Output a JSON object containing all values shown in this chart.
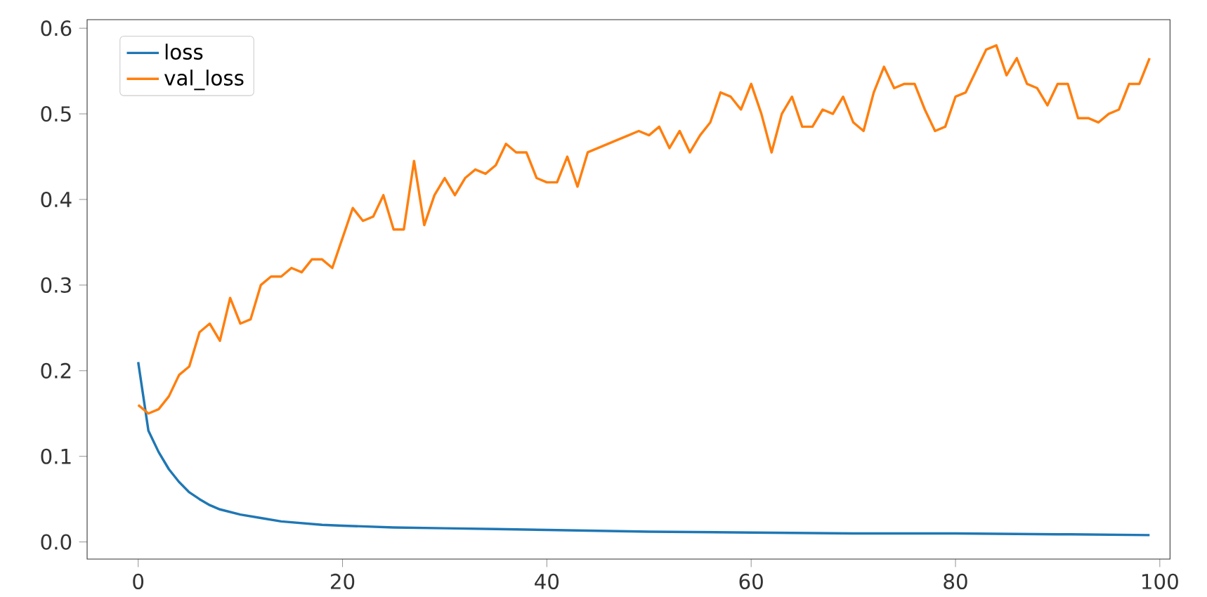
{
  "chart_data": {
    "type": "line",
    "xlim": [
      -5,
      101
    ],
    "ylim": [
      -0.02,
      0.61
    ],
    "xticks": [
      0,
      20,
      40,
      60,
      80,
      100
    ],
    "yticks": [
      {
        "value": 0,
        "label": "0.0"
      },
      {
        "value": 0.1,
        "label": "0.1"
      },
      {
        "value": 0.2,
        "label": "0.2"
      },
      {
        "value": 0.3,
        "label": "0.3"
      },
      {
        "value": 0.4,
        "label": "0.4"
      },
      {
        "value": 0.5,
        "label": "0.5"
      },
      {
        "value": 0.6,
        "label": "0.6"
      }
    ],
    "legend": "top left",
    "grid": false,
    "line_style": "solid",
    "series": [
      {
        "name": "loss",
        "color": "#1f77b4",
        "x": [
          0,
          1,
          2,
          3,
          4,
          5,
          6,
          7,
          8,
          9,
          10,
          12,
          14,
          16,
          18,
          20,
          25,
          30,
          35,
          40,
          50,
          60,
          70,
          80,
          90,
          99
        ],
        "values": [
          0.21,
          0.13,
          0.105,
          0.085,
          0.07,
          0.058,
          0.05,
          0.043,
          0.038,
          0.035,
          0.032,
          0.028,
          0.024,
          0.022,
          0.02,
          0.019,
          0.017,
          0.016,
          0.015,
          0.014,
          0.012,
          0.011,
          0.01,
          0.01,
          0.009,
          0.008
        ]
      },
      {
        "name": "val_loss",
        "color": "#ff7f0e",
        "x": [
          0,
          1,
          2,
          3,
          4,
          5,
          6,
          7,
          8,
          9,
          10,
          11,
          12,
          13,
          14,
          15,
          16,
          17,
          18,
          19,
          20,
          21,
          22,
          23,
          24,
          25,
          26,
          27,
          28,
          29,
          30,
          31,
          32,
          33,
          34,
          35,
          36,
          37,
          38,
          39,
          40,
          41,
          42,
          43,
          44,
          45,
          46,
          47,
          48,
          49,
          50,
          51,
          52,
          53,
          54,
          55,
          56,
          57,
          58,
          59,
          60,
          61,
          62,
          63,
          64,
          65,
          66,
          67,
          68,
          69,
          70,
          71,
          72,
          73,
          74,
          75,
          76,
          77,
          78,
          79,
          80,
          81,
          82,
          83,
          84,
          85,
          86,
          87,
          88,
          89,
          90,
          91,
          92,
          93,
          94,
          95,
          96,
          97,
          98,
          99
        ],
        "values": [
          0.16,
          0.15,
          0.155,
          0.17,
          0.195,
          0.205,
          0.245,
          0.255,
          0.235,
          0.285,
          0.255,
          0.26,
          0.3,
          0.31,
          0.31,
          0.32,
          0.315,
          0.33,
          0.33,
          0.32,
          0.355,
          0.39,
          0.375,
          0.38,
          0.405,
          0.365,
          0.365,
          0.445,
          0.37,
          0.405,
          0.425,
          0.405,
          0.425,
          0.435,
          0.43,
          0.44,
          0.465,
          0.455,
          0.455,
          0.425,
          0.42,
          0.42,
          0.45,
          0.415,
          0.455,
          0.46,
          0.465,
          0.47,
          0.475,
          0.48,
          0.475,
          0.485,
          0.46,
          0.48,
          0.455,
          0.475,
          0.49,
          0.525,
          0.52,
          0.505,
          0.535,
          0.5,
          0.455,
          0.5,
          0.52,
          0.485,
          0.485,
          0.505,
          0.5,
          0.52,
          0.49,
          0.48,
          0.525,
          0.555,
          0.53,
          0.535,
          0.535,
          0.505,
          0.48,
          0.485,
          0.52,
          0.525,
          0.55,
          0.575,
          0.58,
          0.545,
          0.565,
          0.535,
          0.53,
          0.51,
          0.535,
          0.535,
          0.495,
          0.495,
          0.49,
          0.5,
          0.505,
          0.535,
          0.535,
          0.565
        ]
      }
    ]
  }
}
